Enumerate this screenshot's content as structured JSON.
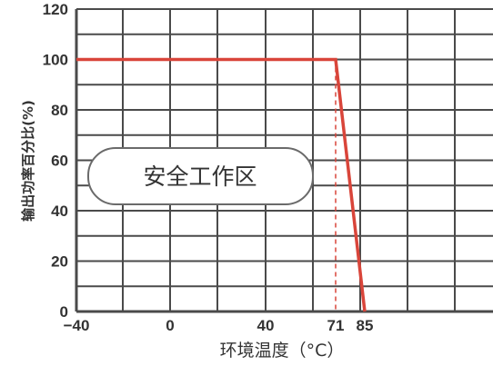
{
  "chart_data": {
    "type": "line",
    "xlabel": "环境温度（°C）",
    "ylabel": "输出功率百分比(%)",
    "x_ticks": [
      "−40",
      "0",
      "40",
      "71",
      "85"
    ],
    "y_ticks": [
      "0",
      "20",
      "40",
      "60",
      "80",
      "100",
      "120"
    ],
    "xlim": [
      -40,
      160
    ],
    "ylim": [
      0,
      120
    ],
    "grid": true,
    "series": [
      {
        "x": [
          -40,
          71,
          85
        ],
        "y": [
          100,
          100,
          0
        ]
      }
    ],
    "marker": {
      "x": 71,
      "style": "dashed"
    },
    "annotations": [
      {
        "text": "安全工作区"
      }
    ],
    "colors": {
      "line": "#d9453a",
      "grid": "#4a4a4a",
      "text": "#333333",
      "zone_border": "#6a6a6a",
      "zone_fill": "#ffffff",
      "background": "#ffffff"
    }
  }
}
